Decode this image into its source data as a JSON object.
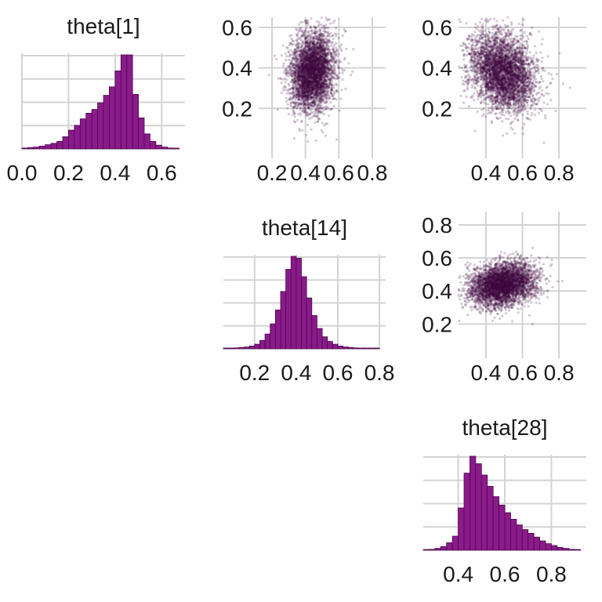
{
  "colors": {
    "bar_fill": "#8b1a8b",
    "bar_stroke": "#4a0a4a",
    "point": "#3f0a3f",
    "grid": "#d3d3d3"
  },
  "chart_data": [
    {
      "type": "bar",
      "title": "theta[1]",
      "xlim": [
        0.0,
        0.7
      ],
      "xticks": [
        "0.0",
        "0.2",
        "0.4",
        "0.6"
      ],
      "bin_edges": [
        0.0,
        0.025,
        0.05,
        0.075,
        0.1,
        0.125,
        0.15,
        0.175,
        0.2,
        0.225,
        0.25,
        0.275,
        0.3,
        0.325,
        0.35,
        0.375,
        0.4,
        0.425,
        0.45,
        0.475,
        0.5,
        0.525,
        0.55,
        0.575,
        0.6,
        0.625,
        0.65,
        0.675
      ],
      "counts": [
        0.01,
        0.015,
        0.02,
        0.03,
        0.045,
        0.06,
        0.08,
        0.13,
        0.2,
        0.25,
        0.32,
        0.38,
        0.42,
        0.49,
        0.57,
        0.66,
        0.83,
        1.0,
        1.0,
        0.58,
        0.33,
        0.16,
        0.08,
        0.04,
        0.02,
        0.01,
        0.005
      ]
    },
    {
      "type": "scatter",
      "x_param": "theta[14]",
      "y_param": "theta[1]",
      "xlim": [
        0.12,
        0.88
      ],
      "ylim": [
        0.0,
        0.65
      ],
      "xticks": [
        "0.2",
        "0.4",
        "0.6",
        "0.8"
      ],
      "yticks": [
        "0.2",
        "0.4",
        "0.6"
      ],
      "n_points": 4000,
      "x_mean": 0.44,
      "x_sd": 0.065,
      "y_mean": 0.38,
      "y_sd": 0.095,
      "correlation": 0.15
    },
    {
      "type": "scatter",
      "x_param": "theta[28]",
      "y_param": "theta[1]",
      "xlim": [
        0.25,
        0.95
      ],
      "ylim": [
        0.0,
        0.65
      ],
      "xticks": [
        "0.4",
        "0.6",
        "0.8"
      ],
      "yticks": [
        "0.2",
        "0.4",
        "0.6"
      ],
      "n_points": 4000,
      "x_mean": 0.49,
      "x_sd": 0.09,
      "y_mean": 0.38,
      "y_sd": 0.095,
      "correlation": -0.25
    },
    {
      "type": "bar",
      "title": "theta[14]",
      "xlim": [
        0.05,
        0.83
      ],
      "xticks": [
        "0.2",
        "0.4",
        "0.6",
        "0.8"
      ],
      "bin_edges": [
        0.05,
        0.075,
        0.1,
        0.125,
        0.15,
        0.175,
        0.2,
        0.225,
        0.25,
        0.275,
        0.3,
        0.325,
        0.35,
        0.375,
        0.4,
        0.425,
        0.45,
        0.475,
        0.5,
        0.525,
        0.55,
        0.575,
        0.6,
        0.625,
        0.65,
        0.675,
        0.7,
        0.725,
        0.75,
        0.775,
        0.8
      ],
      "counts": [
        0.005,
        0.008,
        0.01,
        0.015,
        0.02,
        0.03,
        0.05,
        0.09,
        0.16,
        0.27,
        0.42,
        0.62,
        0.86,
        1.0,
        0.98,
        0.78,
        0.55,
        0.36,
        0.22,
        0.13,
        0.08,
        0.05,
        0.03,
        0.02,
        0.015,
        0.01,
        0.008,
        0.005,
        0.004,
        0.003
      ]
    },
    {
      "type": "scatter",
      "x_param": "theta[28]",
      "y_param": "theta[14]",
      "xlim": [
        0.25,
        0.95
      ],
      "ylim": [
        0.05,
        0.88
      ],
      "xticks": [
        "0.4",
        "0.6",
        "0.8"
      ],
      "yticks": [
        "0.2",
        "0.4",
        "0.6",
        "0.8"
      ],
      "n_points": 4000,
      "x_mean": 0.49,
      "x_sd": 0.09,
      "y_mean": 0.44,
      "y_sd": 0.065,
      "correlation": 0.2
    },
    {
      "type": "bar",
      "title": "theta[28]",
      "xlim": [
        0.25,
        0.95
      ],
      "xticks": [
        "0.4",
        "0.6",
        "0.8"
      ],
      "bin_edges": [
        0.25,
        0.275,
        0.3,
        0.325,
        0.35,
        0.375,
        0.4,
        0.425,
        0.45,
        0.475,
        0.5,
        0.525,
        0.55,
        0.575,
        0.6,
        0.625,
        0.65,
        0.675,
        0.7,
        0.725,
        0.75,
        0.775,
        0.8,
        0.825,
        0.85,
        0.875,
        0.9,
        0.925
      ],
      "counts": [
        0.005,
        0.01,
        0.02,
        0.04,
        0.08,
        0.15,
        0.45,
        0.82,
        1.0,
        0.92,
        0.8,
        0.68,
        0.57,
        0.48,
        0.4,
        0.33,
        0.27,
        0.22,
        0.18,
        0.14,
        0.1,
        0.07,
        0.05,
        0.03,
        0.02,
        0.01,
        0.005
      ]
    }
  ]
}
